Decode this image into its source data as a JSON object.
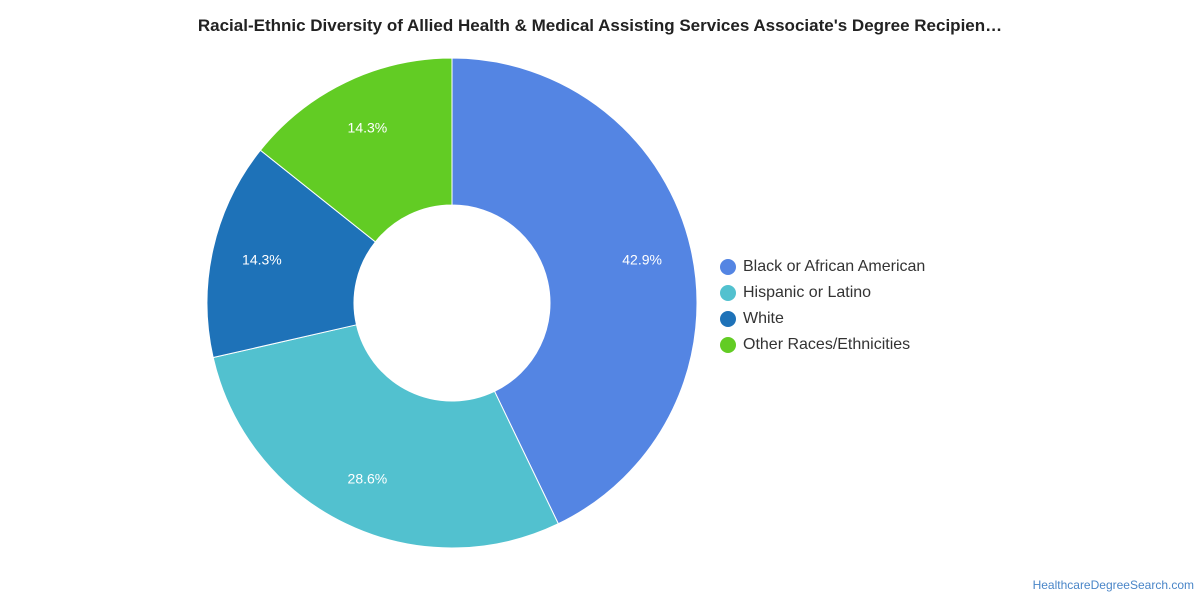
{
  "chart_data": {
    "type": "pie",
    "donut": true,
    "title": "Racial-Ethnic Diversity of Allied Health & Medical Assisting Services Associate's Degree Recipien…",
    "categories": [
      "Black or African American",
      "Hispanic or Latino",
      "White",
      "Other Races/Ethnicities"
    ],
    "values": [
      42.9,
      28.6,
      14.3,
      14.3
    ],
    "labels": [
      "42.9%",
      "28.6%",
      "14.3%",
      "14.3%"
    ],
    "colors": [
      "#5485e3",
      "#52c1cf",
      "#1e72b8",
      "#62cc24"
    ],
    "legend_position": "right"
  },
  "credit": "HealthcareDegreeSearch.com"
}
